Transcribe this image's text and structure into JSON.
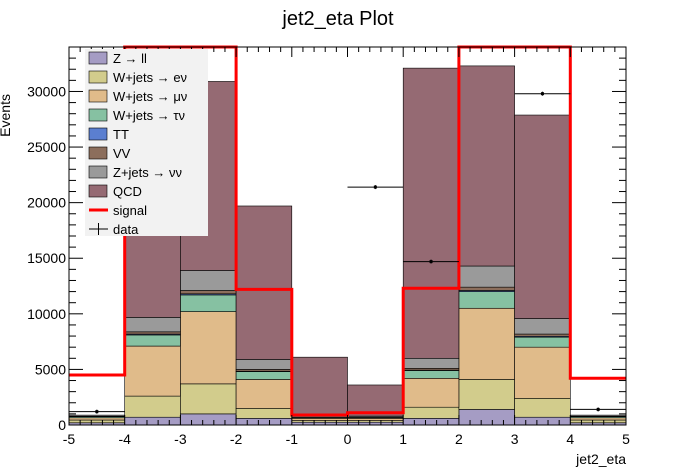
{
  "chart_data": {
    "type": "bar",
    "stacked": true,
    "title": "jet2_eta Plot",
    "xlabel": "jet2_eta",
    "ylabel": "Events",
    "xlim": [
      -5,
      5
    ],
    "ylim": [
      0,
      34000
    ],
    "x_ticks": [
      -5,
      -4,
      -3,
      -2,
      -1,
      0,
      1,
      2,
      3,
      4,
      5
    ],
    "x_tick_labels": [
      "-5",
      "-4",
      "-3",
      "-2",
      "-1",
      "0",
      "1",
      "2",
      "3",
      "4",
      "5"
    ],
    "y_ticks": [
      0,
      5000,
      10000,
      15000,
      20000,
      25000,
      30000
    ],
    "y_tick_labels": [
      "0",
      "5000",
      "10000",
      "15000",
      "20000",
      "25000",
      "30000"
    ],
    "bin_edges": [
      -5,
      -4,
      -3,
      -2,
      -1,
      0,
      1,
      2,
      3,
      4,
      5
    ],
    "stack_series": [
      {
        "name": "Z → ll",
        "color": "#a59cc4",
        "values": [
          200,
          700,
          1000,
          600,
          250,
          250,
          600,
          1400,
          700,
          200
        ]
      },
      {
        "name": "W+jets → eν",
        "color": "#d2cc8c",
        "values": [
          250,
          1900,
          2700,
          900,
          150,
          150,
          1000,
          2700,
          1700,
          250
        ]
      },
      {
        "name": "W+jets → μν",
        "color": "#e0bb8a",
        "values": [
          200,
          4500,
          6500,
          2600,
          200,
          200,
          2600,
          6400,
          4600,
          200
        ]
      },
      {
        "name": "W+jets → τν",
        "color": "#86c1a2",
        "values": [
          100,
          1000,
          1500,
          700,
          80,
          80,
          700,
          1500,
          900,
          100
        ]
      },
      {
        "name": "TT",
        "color": "#5b7fd0",
        "values": [
          20,
          80,
          100,
          40,
          10,
          10,
          40,
          100,
          80,
          20
        ]
      },
      {
        "name": "VV",
        "color": "#8c6e5c",
        "values": [
          20,
          200,
          300,
          160,
          20,
          20,
          160,
          300,
          200,
          20
        ]
      },
      {
        "name": "Z+jets → νν",
        "color": "#9a9a9a",
        "values": [
          100,
          1300,
          1800,
          900,
          90,
          90,
          900,
          1900,
          1400,
          100
        ]
      },
      {
        "name": "QCD",
        "color": "#956a73",
        "values": [
          0,
          21000,
          17000,
          13800,
          5300,
          2800,
          26100,
          18000,
          18300,
          0
        ]
      }
    ],
    "signal": {
      "name": "signal",
      "color": "#ff0000",
      "values": [
        4500,
        40000,
        40000,
        12200,
        900,
        1100,
        12300,
        40000,
        40000,
        4200
      ]
    },
    "data_series": {
      "name": "data",
      "points": [
        {
          "x": -4.5,
          "y": 1200
        },
        {
          "x": 0.5,
          "y": 21400
        },
        {
          "x": 1.5,
          "y": 14700
        },
        {
          "x": 3.5,
          "y": 29800
        },
        {
          "x": 4.5,
          "y": 1400
        }
      ]
    },
    "legend_position": "top-left"
  }
}
